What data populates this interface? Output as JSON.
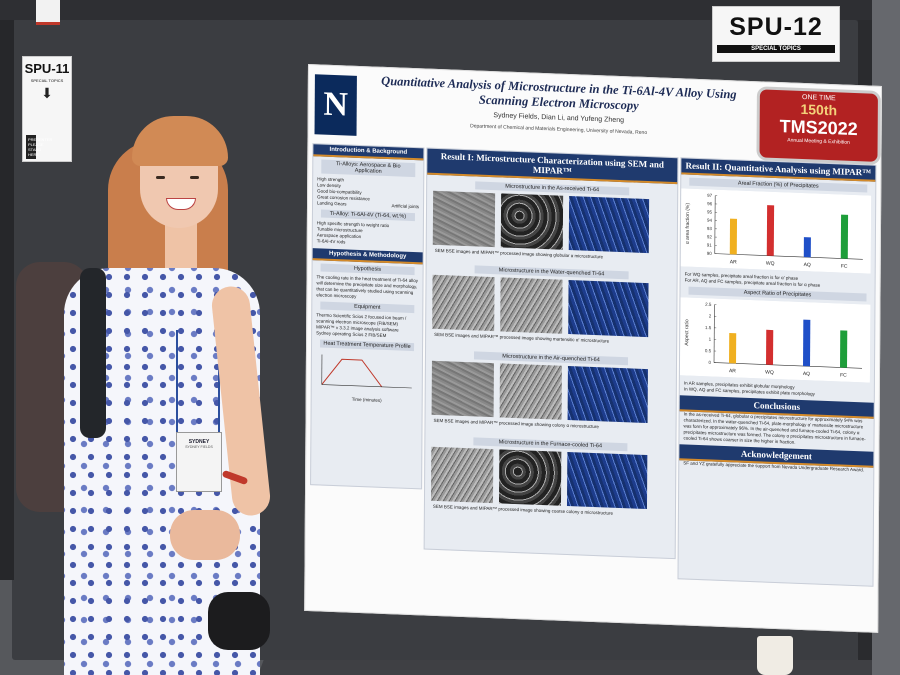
{
  "signs": {
    "spu12": {
      "code": "SPU-12",
      "category": "SPECIAL TOPICS"
    },
    "spu11": {
      "code": "SPU-11",
      "line1": "SPECIAL TOPICS",
      "line2": "PRESENTER PLEASE STAND HERE"
    }
  },
  "poster": {
    "logo": "N",
    "title": "Quantitative Analysis of Microstructure in the Ti-6Al-4V Alloy Using Scanning Electron Microscopy",
    "authors": "Sydney Fields, Dian Li, and Yufeng Zheng",
    "affiliation": "Department of Chemical and Materials Engineering, University of Nevada, Reno",
    "badge": {
      "line1": "ONE TIME",
      "line2": "150th",
      "line3": "TMS2022",
      "line4": "Annual Meeting & Exhibition"
    },
    "left_column": {
      "header1": "Introduction & Background",
      "sub1": "Ti-Alloys: Aerospace & Bio Application",
      "props": [
        "High strength",
        "Low density",
        "Good bio-compatibility",
        "Great corrosion resistance"
      ],
      "img_labels": [
        "Landing Gears",
        "Artificial joints"
      ],
      "sub2": "Ti-Alloy: Ti-6Al-4V (Ti-64, wt.%)",
      "props2": [
        "High specific strength to weight ratio",
        "Tunable microstructure",
        "Aerospace application"
      ],
      "rods": "Ti-6Al-4V rods",
      "header2": "Hypothesis & Methodology",
      "sub3": "Hypothesis",
      "hypothesis": "The cooling rate in the heat treatment of Ti-64 alloy will determine the precipitate size and morphology, that can be quantitatively studied using scanning electron microscopy",
      "sub4": "Equipment",
      "equipment": [
        "Thermo Scientific Scios 2 focused ion beam / scanning electron microscope (FIB/SEM)",
        "MIPAR™ v 3.3.2 image analysis software"
      ],
      "sem_label": "Sydney operating Scios 2 FIB/SEM",
      "sub5": "Heat Treatment Temperature Profile",
      "profile_x": "Time (minutes)"
    },
    "mid_column": {
      "header": "Result I: Microstructure Characterization using SEM and MIPAR™",
      "sections": [
        {
          "title": "Microstructure in the As-received Ti-64",
          "caption": "SEM BSE images and MIPAR™ processed image showing globular α microstructure"
        },
        {
          "title": "Microstructure in the Water-quenched Ti-64",
          "caption": "SEM BSE images and MIPAR™ processed image showing martensitic α' microstructure"
        },
        {
          "title": "Microstructure in the Air-quenched Ti-64",
          "caption": "SEM BSE images and MIPAR™ processed image showing colony α microstructure"
        },
        {
          "title": "Microstructure in the Furnace-cooled Ti-64",
          "caption": "SEM BSE images and MIPAR™ processed image showing coarse colony α microstructure"
        }
      ]
    },
    "right_column": {
      "header": "Result II: Quantitative Analysis using MIPAR™",
      "chart1_title": "Areal Fraction (%) of Precipitates",
      "chart1_ylabel": "α area fraction (%)",
      "chart1_note1": "For WQ samples, precipitate areal fraction is for α' phase",
      "chart1_note2": "For AR, AQ and FC samples, precipitate areal fraction is for α phase",
      "chart2_title": "Aspect Ratio of Precipitates",
      "chart2_ylabel": "Aspect ratio",
      "chart2_note1": "In AR samples, precipitates exhibit globular morphology",
      "chart2_note2": "In WQ, AQ and FC samples, precipitates exhibit plate morphology",
      "conclusions_header": "Conclusions",
      "conclusions": "In the as-received Ti-64, globular α precipitates microstructure for approximately 94% was characterized. In the water-quenched Ti-64, plate-morphology α' martensite microstructure was form for approximately 96%. In the air-quenched and furnace-cooled Ti-64, colony α precipitates microstructure was formed. The colony α precipitates microstructure in furnace-cooled Ti-64 shows coarser in size the higher in fraction.",
      "ack_header": "Acknowledgement",
      "ack": "SF and YZ gratefully appreciate the support from Nevada Undergraduate Research Award."
    }
  },
  "name_badge": {
    "name": "SYDNEY",
    "role": "SYDNEY FIELDS"
  },
  "chart_data": [
    {
      "type": "bar",
      "title": "Areal Fraction (%) of Precipitates",
      "ylabel": "α area fraction (%)",
      "categories": [
        "AR",
        "WQ",
        "AQ",
        "FC"
      ],
      "values": [
        94.3,
        96.1,
        92.4,
        95.3
      ],
      "ylim": [
        90,
        97
      ],
      "yticks": [
        90,
        91,
        92,
        93,
        94,
        95,
        96,
        97
      ],
      "colors": [
        "#f0b020",
        "#d32f2f",
        "#1f4fc8",
        "#1e9e3a"
      ]
    },
    {
      "type": "bar",
      "title": "Aspect Ratio of Precipitates",
      "ylabel": "Aspect ratio",
      "categories": [
        "AR",
        "WQ",
        "AQ",
        "FC"
      ],
      "values": [
        1.3,
        1.5,
        2.0,
        1.6
      ],
      "ylim": [
        0,
        2.5
      ],
      "yticks": [
        0,
        0.5,
        1,
        1.5,
        2,
        2.5
      ],
      "colors": [
        "#f0b020",
        "#d32f2f",
        "#1f4fc8",
        "#1e9e3a"
      ]
    }
  ]
}
